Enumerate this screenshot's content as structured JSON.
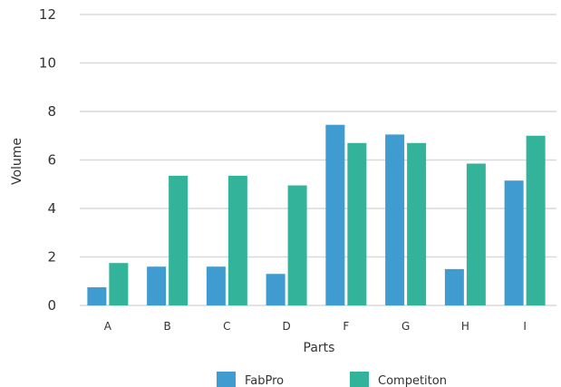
{
  "chart_data": {
    "type": "bar",
    "title": "",
    "xlabel": "Parts",
    "ylabel": "Volume",
    "ylim": [
      0,
      12
    ],
    "yticks": [
      0,
      2,
      4,
      6,
      8,
      10,
      12
    ],
    "grid": true,
    "legend_position": "bottom",
    "categories": [
      "A",
      "B",
      "C",
      "D",
      "F",
      "G",
      "H",
      "I"
    ],
    "series": [
      {
        "name": "FabPro",
        "color": "#3f9bd0",
        "values": [
          0.75,
          1.6,
          1.6,
          1.3,
          7.45,
          7.05,
          1.5,
          5.15
        ]
      },
      {
        "name": "Competiton",
        "color": "#33b39a",
        "values": [
          1.75,
          5.35,
          5.35,
          4.95,
          6.7,
          6.7,
          5.85,
          7.0
        ]
      }
    ]
  }
}
